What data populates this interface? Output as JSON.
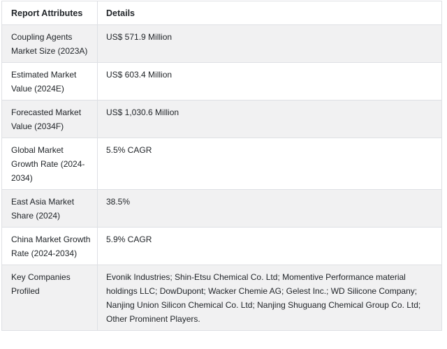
{
  "table": {
    "columns": [
      {
        "label": "Report Attributes"
      },
      {
        "label": "Details"
      }
    ],
    "rows": [
      {
        "attribute": "Coupling Agents Market Size (2023A)",
        "detail": "US$ 571.9 Million"
      },
      {
        "attribute": "Estimated Market Value (2024E)",
        "detail": "US$ 603.4 Million"
      },
      {
        "attribute": "Forecasted Market Value (2034F)",
        "detail": "US$ 1,030.6 Million"
      },
      {
        "attribute": "Global Market Growth Rate (2024-2034)",
        "detail": "5.5% CAGR"
      },
      {
        "attribute": "East Asia Market Share (2024)",
        "detail": "38.5%"
      },
      {
        "attribute": "China Market Growth Rate (2024-2034)",
        "detail": "5.9% CAGR"
      },
      {
        "attribute": "Key Companies Profiled",
        "detail": "Evonik Industries; Shin-Etsu Chemical Co. Ltd; Momentive Performance material holdings LLC; DowDupont; Wacker Chemie AG; Gelest Inc.; WD Silicone Company; Nanjing Union Silicon Chemical Co. Ltd; Nanjing Shuguang Chemical Group Co. Ltd; Other Prominent Players."
      }
    ],
    "colors": {
      "striped_row_bg": "#f1f1f2",
      "plain_row_bg": "#ffffff",
      "border": "#dee0e4",
      "text": "#212529"
    }
  }
}
